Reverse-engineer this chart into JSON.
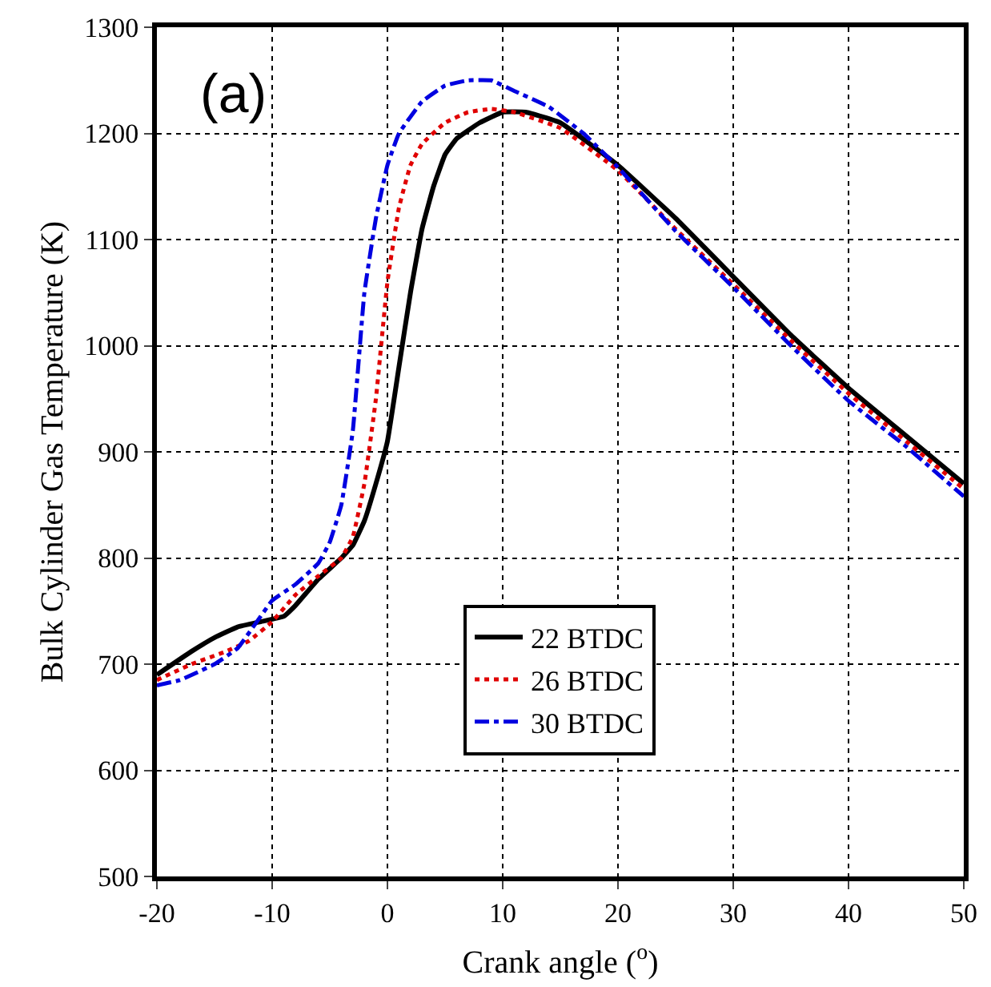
{
  "chart_data": {
    "type": "line",
    "xlabel": "Crank angle ($^{o}$)",
    "ylabel": "Bulk Cylinder Gas Temperature (K)",
    "annotations": [
      "(a)"
    ],
    "xlim": [
      -20,
      50
    ],
    "xticks": [
      -20,
      -10,
      0,
      10,
      20,
      30,
      40,
      50
    ],
    "ylim": [
      500,
      1300
    ],
    "yticks": [
      500,
      600,
      700,
      800,
      900,
      1000,
      1100,
      1200,
      1300
    ],
    "grid": true,
    "legend": "bottom",
    "marker": "none",
    "series": [
      {
        "name": "22 BTDC",
        "color": "#000000",
        "line_style": "solid",
        "x": [
          -20,
          -17,
          -15,
          -13,
          -11,
          -9,
          -8,
          -6,
          -4,
          -3,
          -2,
          -1,
          0,
          1,
          2,
          3,
          4,
          5,
          6,
          8,
          10,
          12,
          15,
          20,
          25,
          30,
          35,
          40,
          45,
          50
        ],
        "values": [
          690,
          712,
          725,
          735,
          740,
          745,
          755,
          780,
          800,
          812,
          835,
          870,
          910,
          980,
          1050,
          1110,
          1150,
          1180,
          1195,
          1210,
          1220,
          1220,
          1210,
          1170,
          1120,
          1065,
          1010,
          960,
          915,
          870
        ]
      },
      {
        "name": "26 BTDC",
        "color": "#e00000",
        "line_style": "dotted",
        "x": [
          -20,
          -17,
          -14,
          -12,
          -10,
          -8,
          -6,
          -4,
          -3,
          -2,
          -1,
          0,
          1,
          2,
          3,
          5,
          7,
          9,
          11,
          15,
          20,
          25,
          30,
          35,
          40,
          45,
          50
        ],
        "values": [
          685,
          700,
          712,
          722,
          740,
          765,
          783,
          800,
          820,
          870,
          950,
          1060,
          1130,
          1170,
          1190,
          1210,
          1220,
          1223,
          1220,
          1205,
          1165,
          1110,
          1058,
          1005,
          955,
          910,
          865
        ]
      },
      {
        "name": "30 BTDC",
        "color": "#0000e0",
        "line_style": "dashed",
        "x": [
          -20,
          -18,
          -15,
          -13,
          -11,
          -10,
          -8,
          -6,
          -5,
          -4,
          -3,
          -2,
          -1,
          0,
          1,
          3,
          5,
          7,
          9,
          11,
          14,
          17,
          20,
          25,
          30,
          35,
          40,
          45,
          50
        ],
        "values": [
          680,
          685,
          700,
          715,
          745,
          760,
          775,
          795,
          815,
          850,
          920,
          1050,
          1120,
          1170,
          1200,
          1230,
          1245,
          1250,
          1250,
          1240,
          1225,
          1200,
          1168,
          1108,
          1055,
          1000,
          948,
          905,
          858
        ]
      }
    ]
  }
}
